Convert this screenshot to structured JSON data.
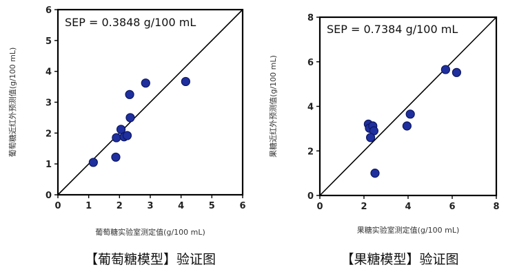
{
  "chart_data": [
    {
      "type": "scatter",
      "annotation": "SEP = 0.3848 g/100 mL",
      "xlabel": "葡萄糖实验室测定值(g/100 mL)",
      "ylabel": "葡萄糖近红外预测值(g/100 mL)",
      "caption": "【葡萄糖模型】验证图",
      "xlim": [
        0,
        6
      ],
      "ylim": [
        0,
        6
      ],
      "xticks": [
        "0",
        "1",
        "2",
        "3",
        "4",
        "5",
        "6"
      ],
      "yticks": [
        "0",
        "1",
        "2",
        "3",
        "4",
        "5",
        "6"
      ],
      "reference_line": "y = x",
      "grid": false,
      "marker_color": "#1f2f9e",
      "points": [
        {
          "x": 1.15,
          "y": 1.05
        },
        {
          "x": 1.88,
          "y": 1.22
        },
        {
          "x": 1.9,
          "y": 1.85
        },
        {
          "x": 2.05,
          "y": 2.12
        },
        {
          "x": 2.15,
          "y": 1.88
        },
        {
          "x": 2.25,
          "y": 1.92
        },
        {
          "x": 2.35,
          "y": 2.5
        },
        {
          "x": 2.33,
          "y": 3.25
        },
        {
          "x": 2.85,
          "y": 3.62
        },
        {
          "x": 4.15,
          "y": 3.67
        }
      ]
    },
    {
      "type": "scatter",
      "annotation": "SEP = 0.7384 g/100 mL",
      "xlabel": "果糖实验室测定值(g/100 mL)",
      "ylabel": "果糖近红外预测值(g/100 mL)",
      "caption": "【果糖模型】验证图",
      "xlim": [
        0,
        8
      ],
      "ylim": [
        0,
        8
      ],
      "xticks": [
        "0",
        "2",
        "4",
        "6",
        "8"
      ],
      "yticks": [
        "0",
        "2",
        "4",
        "6",
        "8"
      ],
      "reference_line": "y = x",
      "grid": false,
      "marker_color": "#1f2f9e",
      "points": [
        {
          "x": 2.2,
          "y": 3.2
        },
        {
          "x": 2.25,
          "y": 3.02
        },
        {
          "x": 2.4,
          "y": 3.12
        },
        {
          "x": 2.45,
          "y": 2.9
        },
        {
          "x": 2.3,
          "y": 2.6
        },
        {
          "x": 2.5,
          "y": 1.0
        },
        {
          "x": 3.95,
          "y": 3.12
        },
        {
          "x": 4.1,
          "y": 3.65
        },
        {
          "x": 5.7,
          "y": 5.65
        },
        {
          "x": 6.2,
          "y": 5.52
        }
      ]
    }
  ]
}
